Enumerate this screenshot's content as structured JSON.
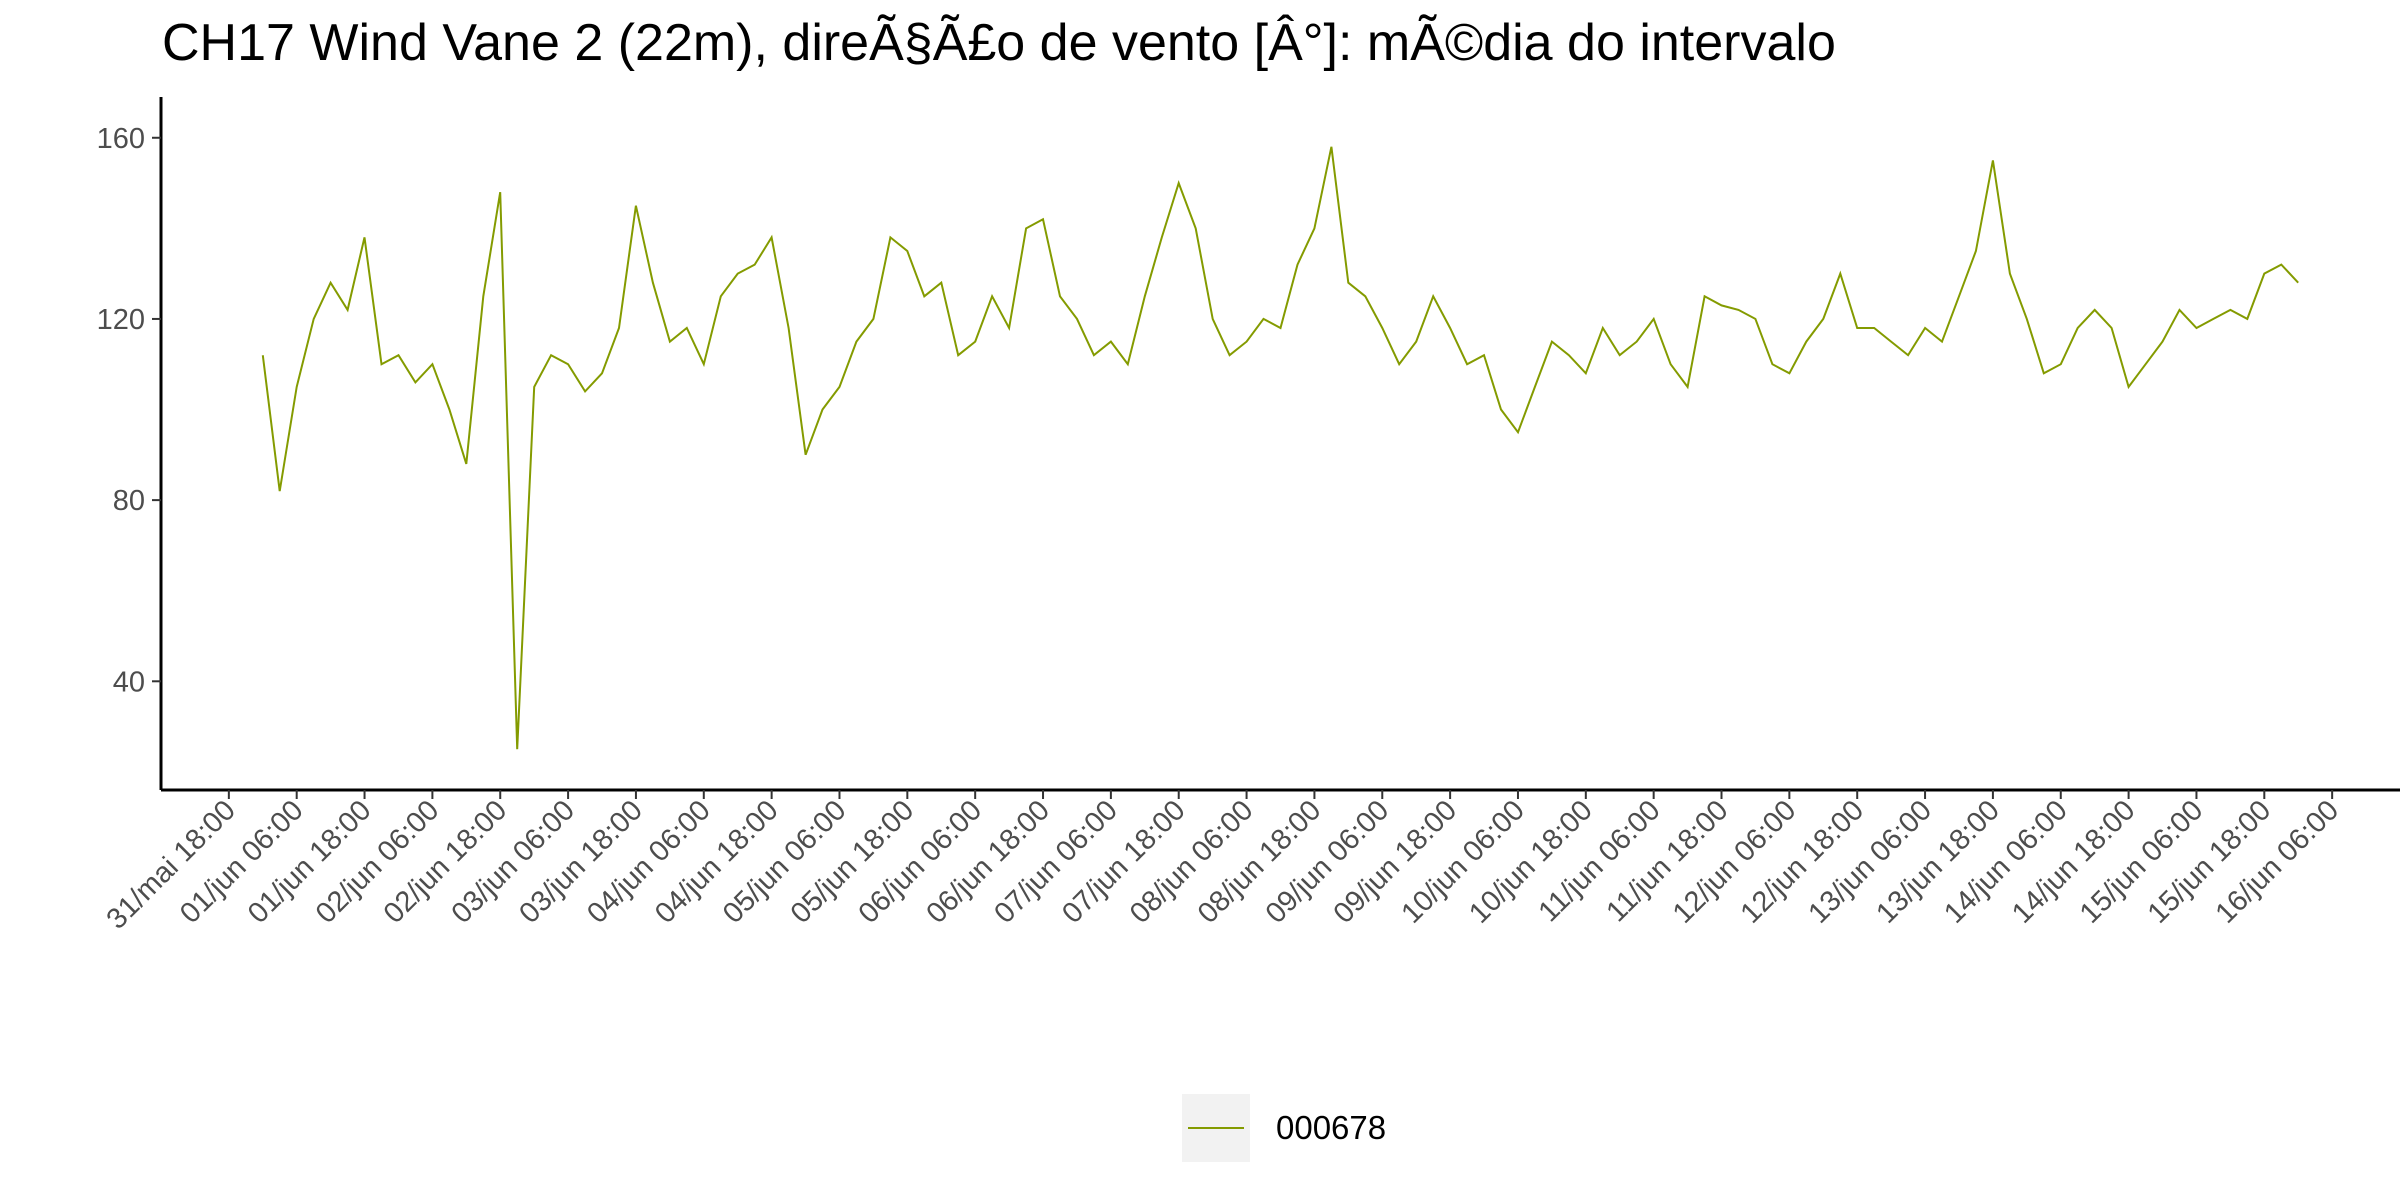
{
  "chart_data": {
    "type": "line",
    "title": "CH17 Wind Vane 2 (22m), direÃ§Ã£o de vento [Â°]: mÃ©dia do intervalo",
    "x": [
      "01/jun 00:00",
      "01/jun 03:00",
      "01/jun 06:00",
      "01/jun 09:00",
      "01/jun 12:00",
      "01/jun 15:00",
      "01/jun 18:00",
      "01/jun 21:00",
      "02/jun 00:00",
      "02/jun 03:00",
      "02/jun 06:00",
      "02/jun 09:00",
      "02/jun 12:00",
      "02/jun 15:00",
      "02/jun 18:00",
      "02/jun 21:00",
      "03/jun 00:00",
      "03/jun 03:00",
      "03/jun 06:00",
      "03/jun 09:00",
      "03/jun 12:00",
      "03/jun 15:00",
      "03/jun 18:00",
      "03/jun 21:00",
      "04/jun 00:00",
      "04/jun 03:00",
      "04/jun 06:00",
      "04/jun 09:00",
      "04/jun 12:00",
      "04/jun 15:00",
      "04/jun 18:00",
      "04/jun 21:00",
      "05/jun 00:00",
      "05/jun 03:00",
      "05/jun 06:00",
      "05/jun 09:00",
      "05/jun 12:00",
      "05/jun 15:00",
      "05/jun 18:00",
      "05/jun 21:00",
      "06/jun 00:00",
      "06/jun 03:00",
      "06/jun 06:00",
      "06/jun 09:00",
      "06/jun 12:00",
      "06/jun 15:00",
      "06/jun 18:00",
      "06/jun 21:00",
      "07/jun 00:00",
      "07/jun 03:00",
      "07/jun 06:00",
      "07/jun 09:00",
      "07/jun 12:00",
      "07/jun 15:00",
      "07/jun 18:00",
      "07/jun 21:00",
      "08/jun 00:00",
      "08/jun 03:00",
      "08/jun 06:00",
      "08/jun 09:00",
      "08/jun 12:00",
      "08/jun 15:00",
      "08/jun 18:00",
      "08/jun 21:00",
      "09/jun 00:00",
      "09/jun 03:00",
      "09/jun 06:00",
      "09/jun 09:00",
      "09/jun 12:00",
      "09/jun 15:00",
      "09/jun 18:00",
      "09/jun 21:00",
      "10/jun 00:00",
      "10/jun 03:00",
      "10/jun 06:00",
      "10/jun 09:00",
      "10/jun 12:00",
      "10/jun 15:00",
      "10/jun 18:00",
      "10/jun 21:00",
      "11/jun 00:00",
      "11/jun 03:00",
      "11/jun 06:00",
      "11/jun 09:00",
      "11/jun 12:00",
      "11/jun 15:00",
      "11/jun 18:00",
      "11/jun 21:00",
      "12/jun 00:00",
      "12/jun 03:00",
      "12/jun 06:00",
      "12/jun 09:00",
      "12/jun 12:00",
      "12/jun 15:00",
      "12/jun 18:00",
      "12/jun 21:00",
      "13/jun 00:00",
      "13/jun 03:00",
      "13/jun 06:00",
      "13/jun 09:00",
      "13/jun 12:00",
      "13/jun 15:00",
      "13/jun 18:00",
      "13/jun 21:00",
      "14/jun 00:00",
      "14/jun 03:00",
      "14/jun 06:00",
      "14/jun 09:00",
      "14/jun 12:00",
      "14/jun 15:00",
      "14/jun 18:00",
      "14/jun 21:00",
      "15/jun 00:00",
      "15/jun 03:00",
      "15/jun 06:00",
      "15/jun 09:00",
      "15/jun 12:00",
      "15/jun 15:00",
      "15/jun 18:00",
      "15/jun 21:00",
      "16/jun 00:00"
    ],
    "series": [
      {
        "name": "000678",
        "color": "#849b00",
        "values": [
          112,
          82,
          105,
          120,
          128,
          122,
          138,
          110,
          112,
          106,
          110,
          100,
          88,
          125,
          148,
          25,
          105,
          112,
          110,
          104,
          108,
          118,
          145,
          128,
          115,
          118,
          110,
          125,
          130,
          132,
          138,
          118,
          90,
          100,
          105,
          115,
          120,
          138,
          135,
          125,
          128,
          112,
          115,
          125,
          118,
          140,
          142,
          125,
          120,
          112,
          115,
          110,
          125,
          138,
          150,
          140,
          120,
          112,
          115,
          120,
          118,
          132,
          140,
          158,
          128,
          125,
          118,
          110,
          115,
          125,
          118,
          110,
          112,
          100,
          95,
          105,
          115,
          112,
          108,
          118,
          112,
          115,
          120,
          110,
          105,
          125,
          123,
          122,
          120,
          110,
          108,
          115,
          120,
          130,
          118,
          118,
          115,
          112,
          118,
          115,
          125,
          135,
          155,
          130,
          120,
          108,
          110,
          118,
          122,
          118,
          105,
          110,
          115,
          122,
          118,
          120,
          122,
          120,
          130,
          132,
          128
        ]
      }
    ],
    "xlim": [
      "31/mai 06:00",
      "16/jun 18:00"
    ],
    "xticks": [
      "31/mai 18:00",
      "01/jun 06:00",
      "01/jun 18:00",
      "02/jun 06:00",
      "02/jun 18:00",
      "03/jun 06:00",
      "03/jun 18:00",
      "04/jun 06:00",
      "04/jun 18:00",
      "05/jun 06:00",
      "05/jun 18:00",
      "06/jun 06:00",
      "06/jun 18:00",
      "07/jun 06:00",
      "07/jun 18:00",
      "08/jun 06:00",
      "08/jun 18:00",
      "09/jun 06:00",
      "09/jun 18:00",
      "10/jun 06:00",
      "10/jun 18:00",
      "11/jun 06:00",
      "11/jun 18:00",
      "12/jun 06:00",
      "12/jun 18:00",
      "13/jun 06:00",
      "13/jun 18:00",
      "14/jun 06:00",
      "14/jun 18:00",
      "15/jun 06:00",
      "15/jun 18:00",
      "16/jun 06:00"
    ],
    "ylim": [
      16,
      169
    ],
    "yticks": [
      40,
      80,
      120,
      160
    ],
    "grid": false,
    "legend": "bottom"
  }
}
